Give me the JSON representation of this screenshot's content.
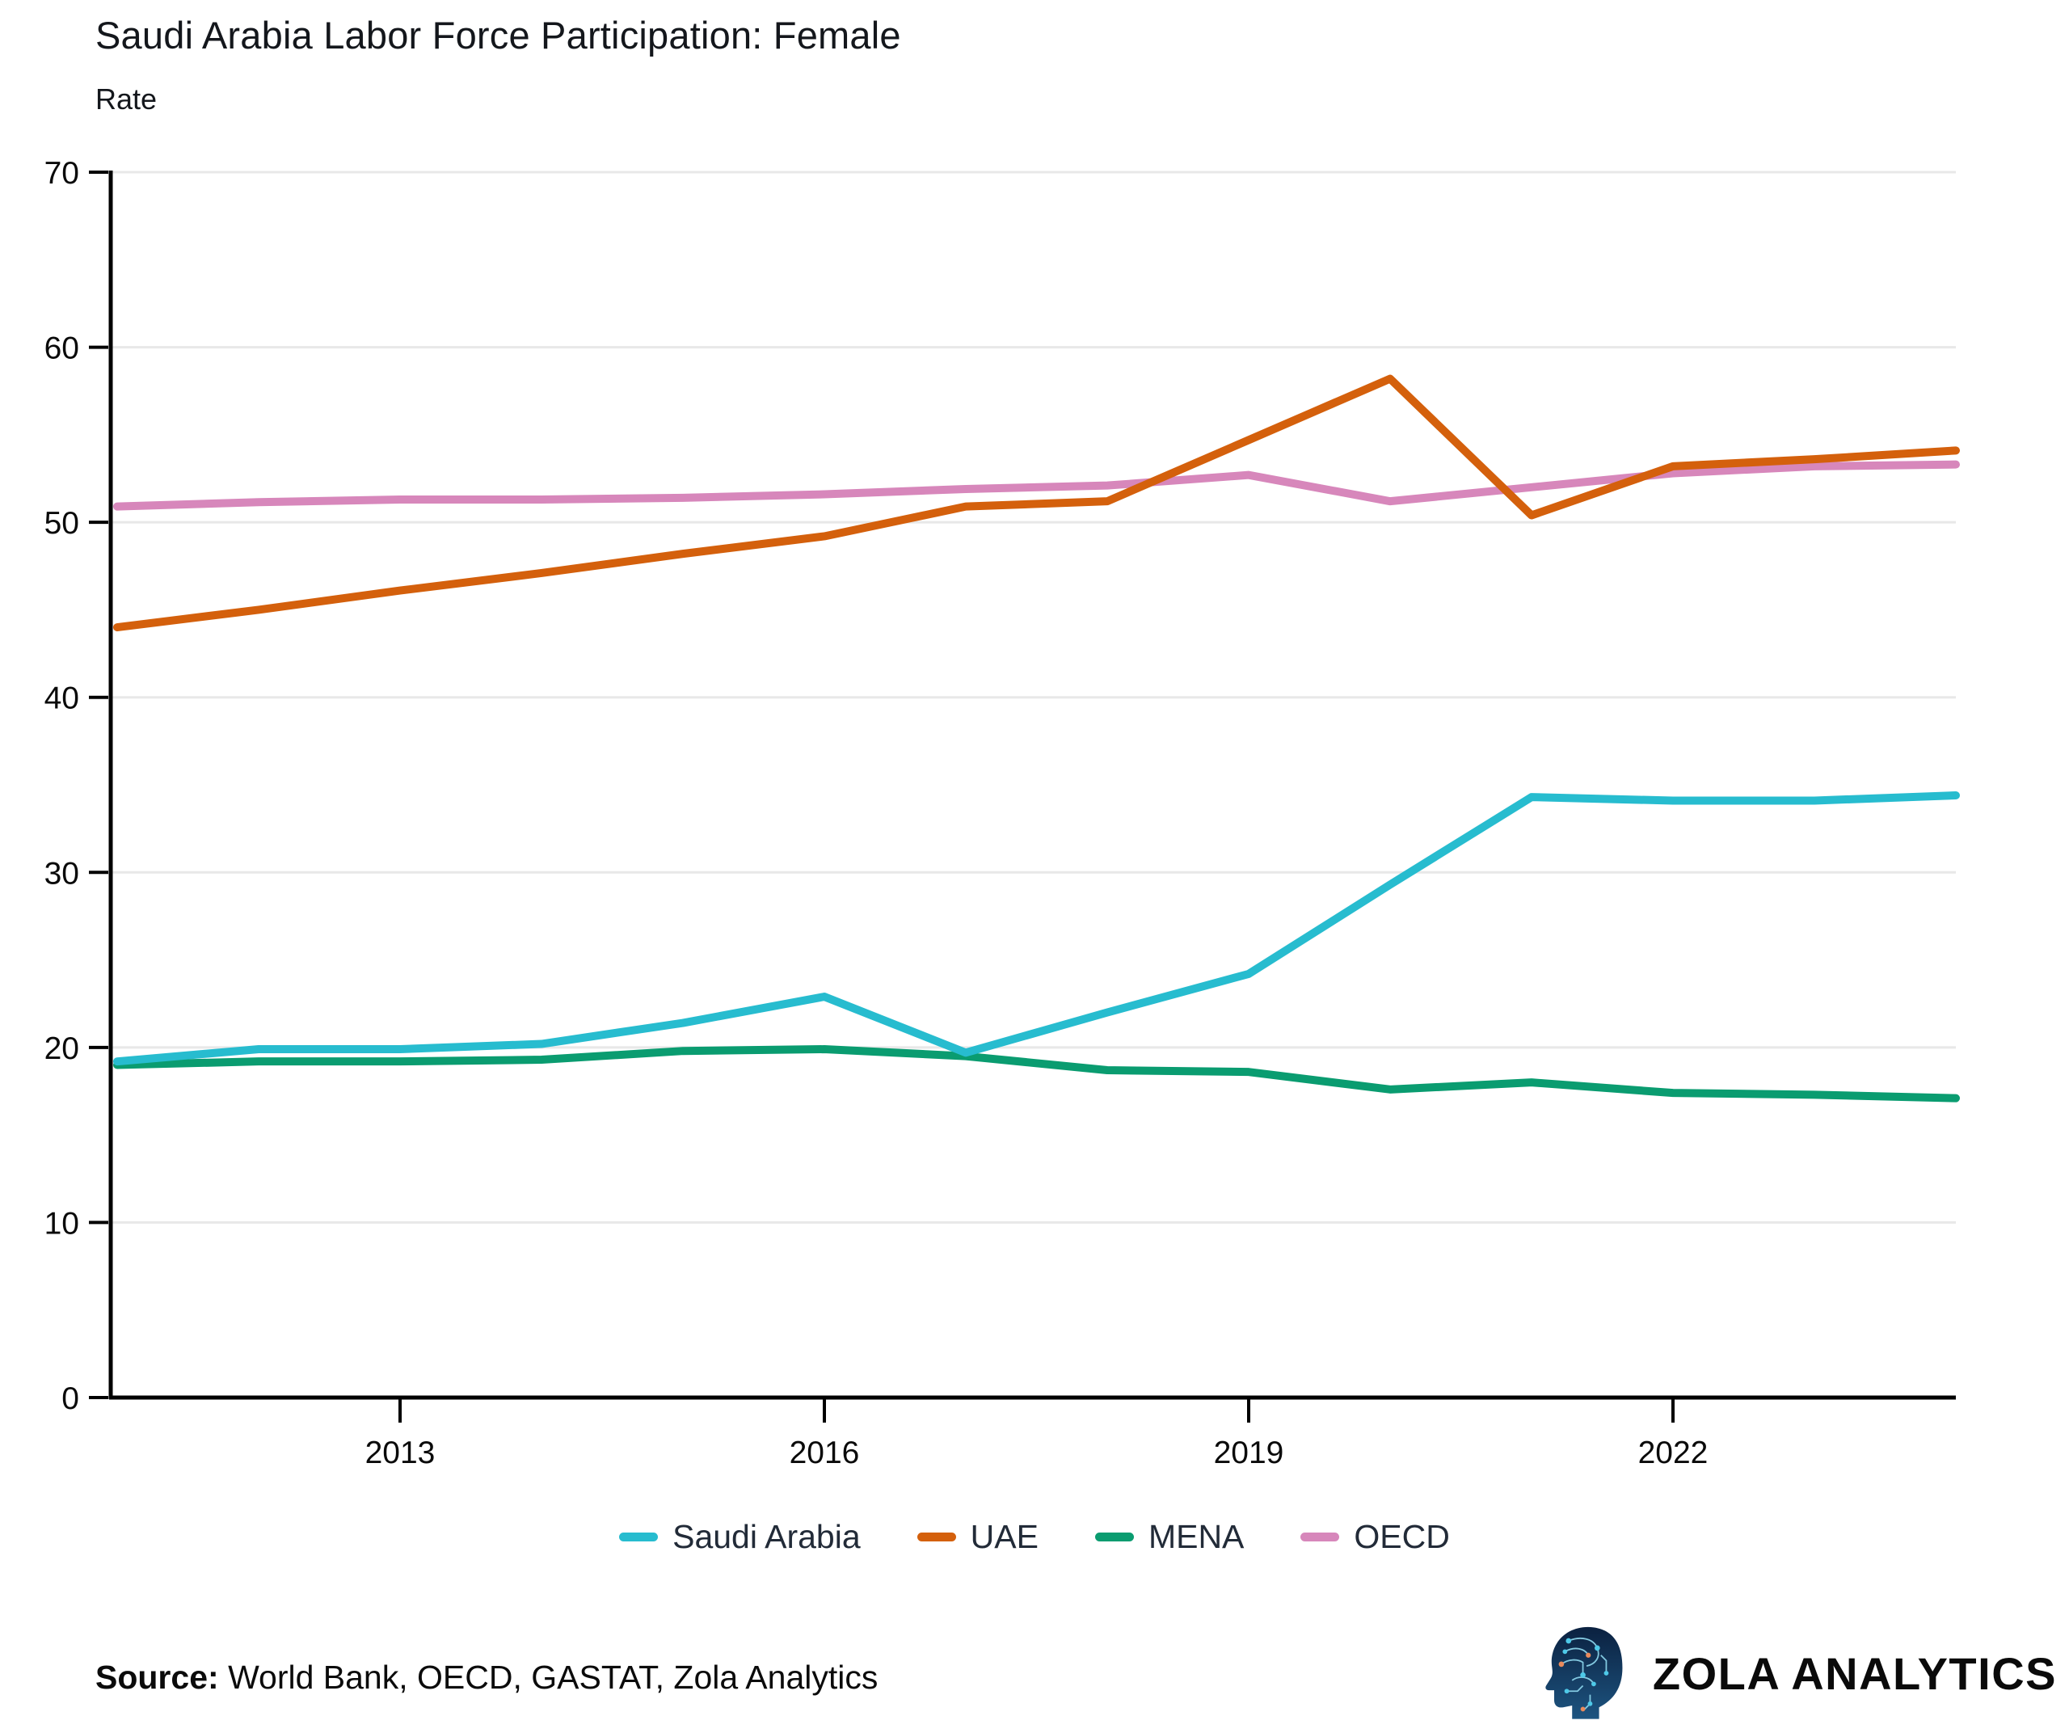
{
  "page": {
    "title": "Saudi Arabia Labor Force Participation: Female",
    "ylabel": "Rate",
    "source_label": "Source:",
    "source_text": "World Bank, OECD, GASTAT, Zola Analytics",
    "brand": "ZOLA ANALYTICS"
  },
  "colors": {
    "saudi_arabia": "#27bccf",
    "uae": "#d4600c",
    "mena": "#0a9c70",
    "oecd": "#d787bb",
    "gridline": "#e8e8e8",
    "axis": "#000000",
    "tick_label": "#0a0a0a",
    "legend_text": "#222b38"
  },
  "chart_data": {
    "type": "line",
    "title": "Saudi Arabia Labor Force Participation: Female",
    "xlabel": "",
    "ylabel": "Rate",
    "x": [
      2011,
      2012,
      2013,
      2014,
      2015,
      2016,
      2017,
      2018,
      2019,
      2020,
      2021,
      2022,
      2023,
      2024
    ],
    "series": [
      {
        "name": "Saudi Arabia",
        "color": "#27bccf",
        "values": [
          19.2,
          19.9,
          19.9,
          20.2,
          21.4,
          22.9,
          19.7,
          22.0,
          24.2,
          29.3,
          34.3,
          34.1,
          34.1,
          34.4
        ]
      },
      {
        "name": "UAE",
        "color": "#d4600c",
        "values": [
          44.0,
          45.0,
          46.1,
          47.1,
          48.2,
          49.2,
          50.9,
          51.2,
          54.7,
          58.2,
          50.4,
          53.2,
          53.6,
          54.1
        ]
      },
      {
        "name": "MENA",
        "color": "#0a9c70",
        "values": [
          19.0,
          19.2,
          19.2,
          19.3,
          19.8,
          19.9,
          19.5,
          18.7,
          18.6,
          17.6,
          18.0,
          17.4,
          17.3,
          17.1
        ]
      },
      {
        "name": "OECD",
        "color": "#d787bb",
        "values": [
          50.9,
          51.15,
          51.3,
          51.3,
          51.4,
          51.6,
          51.9,
          52.1,
          52.7,
          51.2,
          52.0,
          52.8,
          53.2,
          53.3
        ]
      }
    ],
    "ylim": [
      0,
      70
    ],
    "yticks": [
      0,
      10,
      20,
      30,
      40,
      50,
      60,
      70
    ],
    "xticks": [
      2013,
      2016,
      2019,
      2022
    ],
    "grid": true,
    "legend_position": "bottom"
  }
}
